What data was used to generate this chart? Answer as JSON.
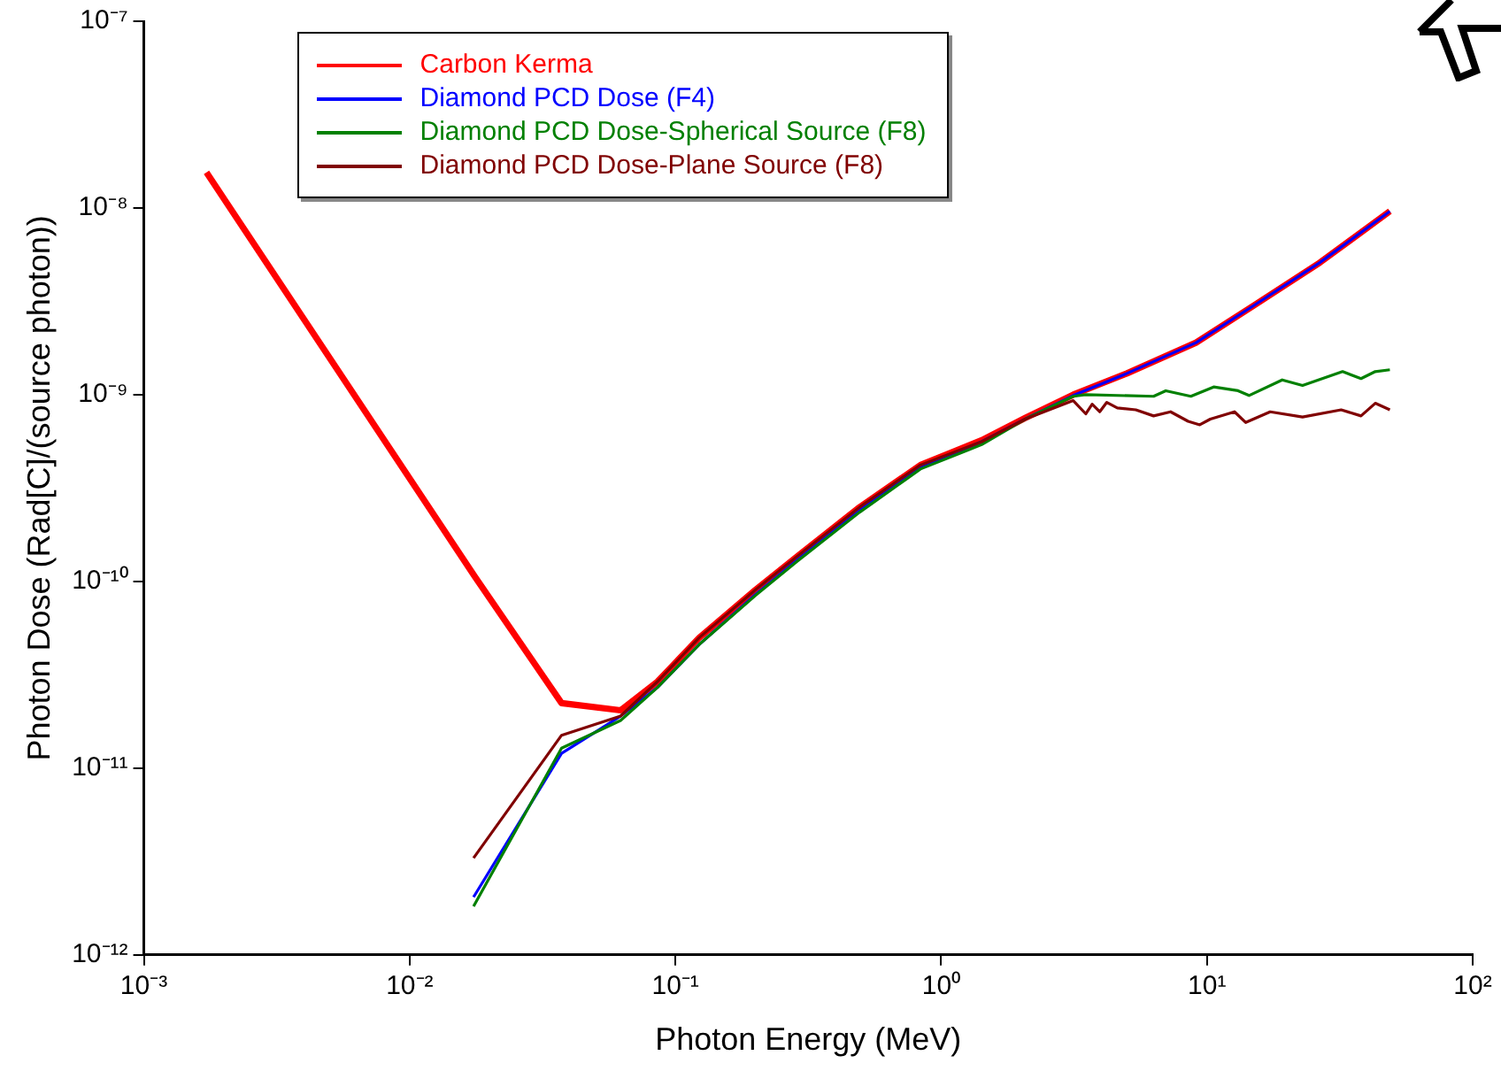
{
  "chart_data": {
    "type": "line",
    "xlabel": "Photon Energy (MeV)",
    "ylabel": "Photon Dose (Rad[C]/(source photon))",
    "log": "xy",
    "grid": false,
    "legend": "top left",
    "marker": "none",
    "line_style": "solid",
    "xlim": [
      0.001,
      100
    ],
    "ylim": [
      1e-12,
      1e-07
    ],
    "xticks": [
      {
        "value": 0.001,
        "label": "10⁻³"
      },
      {
        "value": 0.01,
        "label": "10⁻²"
      },
      {
        "value": 0.1,
        "label": "10⁻¹"
      },
      {
        "value": 1,
        "label": "10⁰"
      },
      {
        "value": 10,
        "label": "10¹"
      },
      {
        "value": 100,
        "label": "10²"
      }
    ],
    "yticks": [
      {
        "value": 1e-12,
        "label": "10⁻¹²"
      },
      {
        "value": 1e-11,
        "label": "10⁻¹¹"
      },
      {
        "value": 1e-10,
        "label": "10⁻¹⁰"
      },
      {
        "value": 1e-09,
        "label": "10⁻⁹"
      },
      {
        "value": 1e-08,
        "label": "10⁻⁸"
      },
      {
        "value": 1e-07,
        "label": "10⁻⁷"
      }
    ],
    "series": [
      {
        "name": "Carbon Kerma",
        "color": "#ff0000",
        "x": [
          0.00172,
          0.0176,
          0.0373,
          0.0622,
          0.0855,
          0.123,
          0.2,
          0.287,
          0.494,
          0.836,
          1.42,
          2.07,
          3.14,
          5,
          9.1,
          15,
          26.6,
          48.8
        ],
        "values": [
          1.55e-08,
          1.06e-10,
          2.23e-11,
          2.04e-11,
          2.9e-11,
          5e-11,
          9e-11,
          1.36e-10,
          2.5e-10,
          4.2e-10,
          5.7e-10,
          7.5e-10,
          1e-09,
          1.3e-09,
          1.9e-09,
          3e-09,
          5.1e-09,
          9.6e-09
        ]
      },
      {
        "name": "Diamond PCD Dose (F4)",
        "color": "#0000ff",
        "x": [
          0.0174,
          0.0373,
          0.0622,
          0.0855,
          0.123,
          0.2,
          0.287,
          0.494,
          0.836,
          1.42,
          2.07,
          3.14,
          5,
          9.1,
          15,
          26.6,
          48.8
        ],
        "values": [
          2.04e-12,
          1.2e-11,
          1.9e-11,
          2.7e-11,
          4.6e-11,
          8.5e-11,
          1.3e-10,
          2.4e-10,
          4.1e-10,
          5.6e-10,
          7.4e-10,
          9.9e-10,
          1.3e-09,
          1.9e-09,
          3e-09,
          5.1e-09,
          9.6e-09
        ]
      },
      {
        "name": "Diamond PCD Dose-Spherical Source (F8)",
        "color": "#008000",
        "x": [
          0.0174,
          0.0373,
          0.0622,
          0.0855,
          0.123,
          0.2,
          0.287,
          0.494,
          0.836,
          1.42,
          2.07,
          3.14,
          3.5,
          6.3,
          7.0,
          8.7,
          10.6,
          13.1,
          14.4,
          19.2,
          22.9,
          32.4,
          38,
          43,
          48.8
        ],
        "values": [
          1.82e-12,
          1.28e-11,
          1.8e-11,
          2.7e-11,
          4.6e-11,
          8.4e-11,
          1.28e-10,
          2.35e-10,
          4e-10,
          5.4e-10,
          7.4e-10,
          9.8e-10,
          1e-09,
          9.8e-10,
          1.05e-09,
          9.8e-10,
          1.1e-09,
          1.05e-09,
          9.9e-10,
          1.2e-09,
          1.12e-09,
          1.33e-09,
          1.22e-09,
          1.33e-09,
          1.36e-09
        ]
      },
      {
        "name": "Diamond PCD Dose-Plane Source (F8)",
        "color": "#800000",
        "x": [
          0.0174,
          0.0373,
          0.0622,
          0.0855,
          0.123,
          0.2,
          0.287,
          0.494,
          0.836,
          1.42,
          2.07,
          3.14,
          3.5,
          3.7,
          3.95,
          4.2,
          4.6,
          5.4,
          6.3,
          7.3,
          8.5,
          9.4,
          10.3,
          12.7,
          14.0,
          17.3,
          22.9,
          32,
          38,
          43,
          48.8
        ],
        "values": [
          3.3e-12,
          1.5e-11,
          1.9e-11,
          2.9e-11,
          5e-11,
          9e-11,
          1.36e-10,
          2.5e-10,
          4.2e-10,
          5.6e-10,
          7.4e-10,
          9.3e-10,
          7.9e-10,
          8.9e-10,
          8.1e-10,
          9.1e-10,
          8.5e-10,
          8.3e-10,
          7.7e-10,
          8.1e-10,
          7.2e-10,
          6.9e-10,
          7.4e-10,
          8.1e-10,
          7.1e-10,
          8.1e-10,
          7.6e-10,
          8.3e-10,
          7.7e-10,
          9e-10,
          8.3e-10
        ]
      }
    ]
  }
}
